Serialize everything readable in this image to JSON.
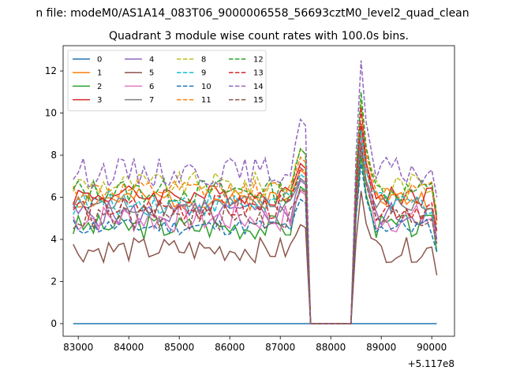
{
  "chart_data": {
    "type": "line",
    "suptitle": "n file: modeM0/AS1A14_083T06_9000006558_56693cztM0_level2_quad_clean",
    "title": "Quadrant 3 module wise count rates with 100.0s bins.",
    "xlabel": "",
    "ylabel": "",
    "x_offset_label": "+5.117e8",
    "xlim": [
      82700,
      90450
    ],
    "ylim": [
      -0.6,
      13.2
    ],
    "x_ticks": [
      83000,
      84000,
      85000,
      86000,
      87000,
      88000,
      89000,
      90000
    ],
    "x_tick_labels": [
      "83000",
      "84000",
      "85000",
      "86000",
      "87000",
      "88000",
      "89000",
      "90000"
    ],
    "y_ticks": [
      0,
      2,
      4,
      6,
      8,
      10,
      12
    ],
    "y_tick_labels": [
      "0",
      "2",
      "4",
      "6",
      "8",
      "10",
      "12"
    ],
    "grid": false,
    "legend_position": "upper-left",
    "x_start": 82900,
    "x_step": 100,
    "gap_start_index": 47,
    "gap_end_index": 55,
    "series": [
      {
        "name": "0",
        "color": "#1f77b4",
        "dash": "solid",
        "base": 0,
        "spike1": 0,
        "spike2": 0,
        "noise": 0,
        "seed": 1
      },
      {
        "name": "1",
        "color": "#ff7f0e",
        "dash": "solid",
        "base": 5.9,
        "spike1": 7.3,
        "spike2": 9.0,
        "noise": 0.25,
        "seed": 2
      },
      {
        "name": "2",
        "color": "#2ca02c",
        "dash": "solid",
        "base": 4.6,
        "spike1": 6.5,
        "spike2": 8.0,
        "noise": 0.3,
        "seed": 3
      },
      {
        "name": "3",
        "color": "#d62728",
        "dash": "solid",
        "base": 6.1,
        "spike1": 7.6,
        "spike2": 9.5,
        "noise": 0.25,
        "seed": 4
      },
      {
        "name": "4",
        "color": "#9467bd",
        "dash": "solid",
        "base": 5.2,
        "spike1": 6.8,
        "spike2": 8.6,
        "noise": 0.3,
        "seed": 5
      },
      {
        "name": "5",
        "color": "#8c564b",
        "dash": "solid",
        "base": 3.5,
        "spike1": 4.7,
        "spike2": 6.3,
        "noise": 0.3,
        "seed": 6
      },
      {
        "name": "6",
        "color": "#e377c2",
        "dash": "solid",
        "base": 5.0,
        "spike1": 6.3,
        "spike2": 8.8,
        "noise": 0.35,
        "seed": 7
      },
      {
        "name": "7",
        "color": "#7f7f7f",
        "dash": "solid",
        "base": 5.6,
        "spike1": 6.9,
        "spike2": 8.3,
        "noise": 0.25,
        "seed": 8
      },
      {
        "name": "8",
        "color": "#bcbd22",
        "dash": "dashed",
        "base": 6.6,
        "spike1": 8.3,
        "spike2": 10.5,
        "noise": 0.3,
        "seed": 9
      },
      {
        "name": "9",
        "color": "#17becf",
        "dash": "dashed",
        "base": 5.7,
        "spike1": 7.1,
        "spike2": 9.2,
        "noise": 0.3,
        "seed": 10
      },
      {
        "name": "10",
        "color": "#1f77b4",
        "dash": "dashed",
        "base": 4.6,
        "spike1": 5.9,
        "spike2": 7.6,
        "noise": 0.2,
        "seed": 11
      },
      {
        "name": "11",
        "color": "#ff7f0e",
        "dash": "dashed",
        "base": 6.3,
        "spike1": 7.9,
        "spike2": 10.2,
        "noise": 0.25,
        "seed": 12
      },
      {
        "name": "12",
        "color": "#2ca02c",
        "dash": "dashed",
        "base": 6.3,
        "spike1": 8.3,
        "spike2": 11.0,
        "noise": 0.3,
        "seed": 13
      },
      {
        "name": "13",
        "color": "#d62728",
        "dash": "dashed",
        "base": 5.5,
        "spike1": 7.4,
        "spike2": 10.3,
        "noise": 0.3,
        "seed": 14
      },
      {
        "name": "14",
        "color": "#9467bd",
        "dash": "dashed",
        "base": 7.2,
        "spike1": 9.7,
        "spike2": 12.5,
        "noise": 0.35,
        "seed": 15
      },
      {
        "name": "15",
        "color": "#8c564b",
        "dash": "dashed",
        "base": 5.0,
        "spike1": 6.4,
        "spike2": 8.6,
        "noise": 0.3,
        "seed": 16
      }
    ]
  }
}
